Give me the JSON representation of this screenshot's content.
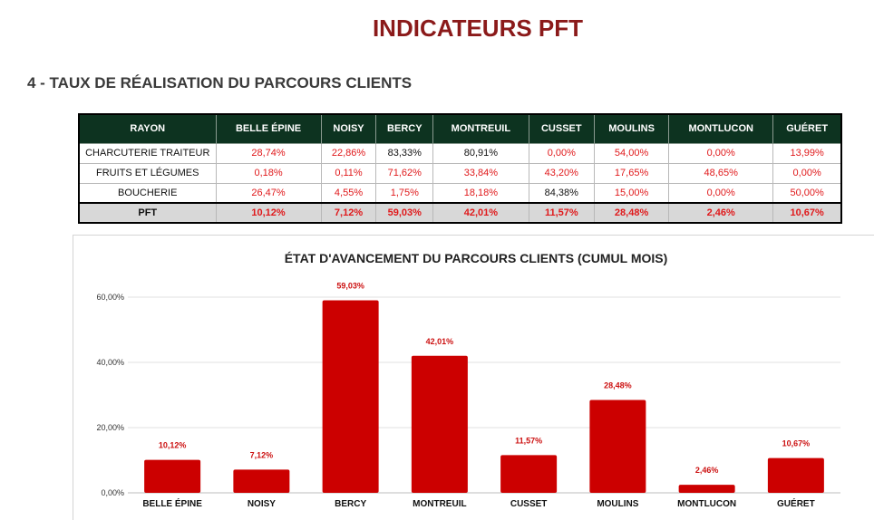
{
  "header": {
    "title": "INDICATEURS PFT",
    "section": "4 - TAUX DE RÉALISATION DU PARCOURS CLIENTS"
  },
  "table": {
    "columns": [
      "RAYON",
      "BELLE ÉPINE",
      "NOISY",
      "BERCY",
      "MONTREUIL",
      "CUSSET",
      "MOULINS",
      "MONTLUCON",
      "GUÉRET"
    ],
    "rows": [
      {
        "label": "CHARCUTERIE TRAITEUR",
        "cells": [
          "28,74%",
          "22,86%",
          "83,33%",
          "80,91%",
          "0,00%",
          "54,00%",
          "0,00%",
          "13,99%"
        ],
        "red": [
          true,
          true,
          false,
          false,
          true,
          true,
          true,
          true
        ]
      },
      {
        "label": "FRUITS ET LÉGUMES",
        "cells": [
          "0,18%",
          "0,11%",
          "71,62%",
          "33,84%",
          "43,20%",
          "17,65%",
          "48,65%",
          "0,00%"
        ],
        "red": [
          true,
          true,
          true,
          true,
          true,
          true,
          true,
          true
        ]
      },
      {
        "label": "BOUCHERIE",
        "cells": [
          "26,47%",
          "4,55%",
          "1,75%",
          "18,18%",
          "84,38%",
          "15,00%",
          "0,00%",
          "50,00%"
        ],
        "red": [
          true,
          true,
          true,
          true,
          false,
          true,
          true,
          true
        ]
      },
      {
        "label": "PFT",
        "cells": [
          "10,12%",
          "7,12%",
          "59,03%",
          "42,01%",
          "11,57%",
          "28,48%",
          "2,46%",
          "10,67%"
        ],
        "red": [
          true,
          true,
          true,
          true,
          true,
          true,
          true,
          true
        ]
      }
    ]
  },
  "colors": {
    "header_bg": "#0d3320",
    "red_value": "#e0191b",
    "bar": "#cc0000",
    "title": "#8b1a1a"
  },
  "chart_data": {
    "type": "bar",
    "title": "ÉTAT D'AVANCEMENT DU PARCOURS CLIENTS (CUMUL MOIS)",
    "categories": [
      "BELLE ÉPINE",
      "NOISY",
      "BERCY",
      "MONTREUIL",
      "CUSSET",
      "MOULINS",
      "MONTLUCON",
      "GUÉRET"
    ],
    "values": [
      10.12,
      7.12,
      59.03,
      42.01,
      11.57,
      28.48,
      2.46,
      10.67
    ],
    "data_labels": [
      "10,12%",
      "7,12%",
      "59,03%",
      "42,01%",
      "11,57%",
      "28,48%",
      "2,46%",
      "10,67%"
    ],
    "yticks": [
      0,
      20,
      40,
      60
    ],
    "ytick_labels": [
      "0,00%",
      "20,00%",
      "40,00%",
      "60,00%"
    ],
    "ylim": [
      0,
      60
    ],
    "grid": true,
    "legend": "none"
  }
}
